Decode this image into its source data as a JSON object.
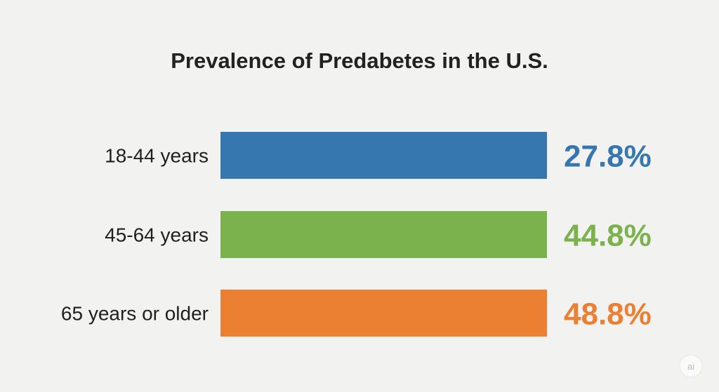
{
  "chart_data": {
    "type": "bar",
    "title": "Prevalence of Predabetes in the U.S.",
    "categories": [
      "18-44 years",
      "45-64 years",
      "65 years or older"
    ],
    "values": [
      27.8,
      44.8,
      48.8
    ],
    "value_labels": [
      "27.8%",
      "44.8%",
      "48.8%"
    ],
    "colors": [
      "#3777af",
      "#7cb24e",
      "#ec8032"
    ],
    "xlabel": "",
    "ylabel": "",
    "grid": false,
    "legend": "none"
  },
  "watermark": {
    "text": "ai"
  }
}
